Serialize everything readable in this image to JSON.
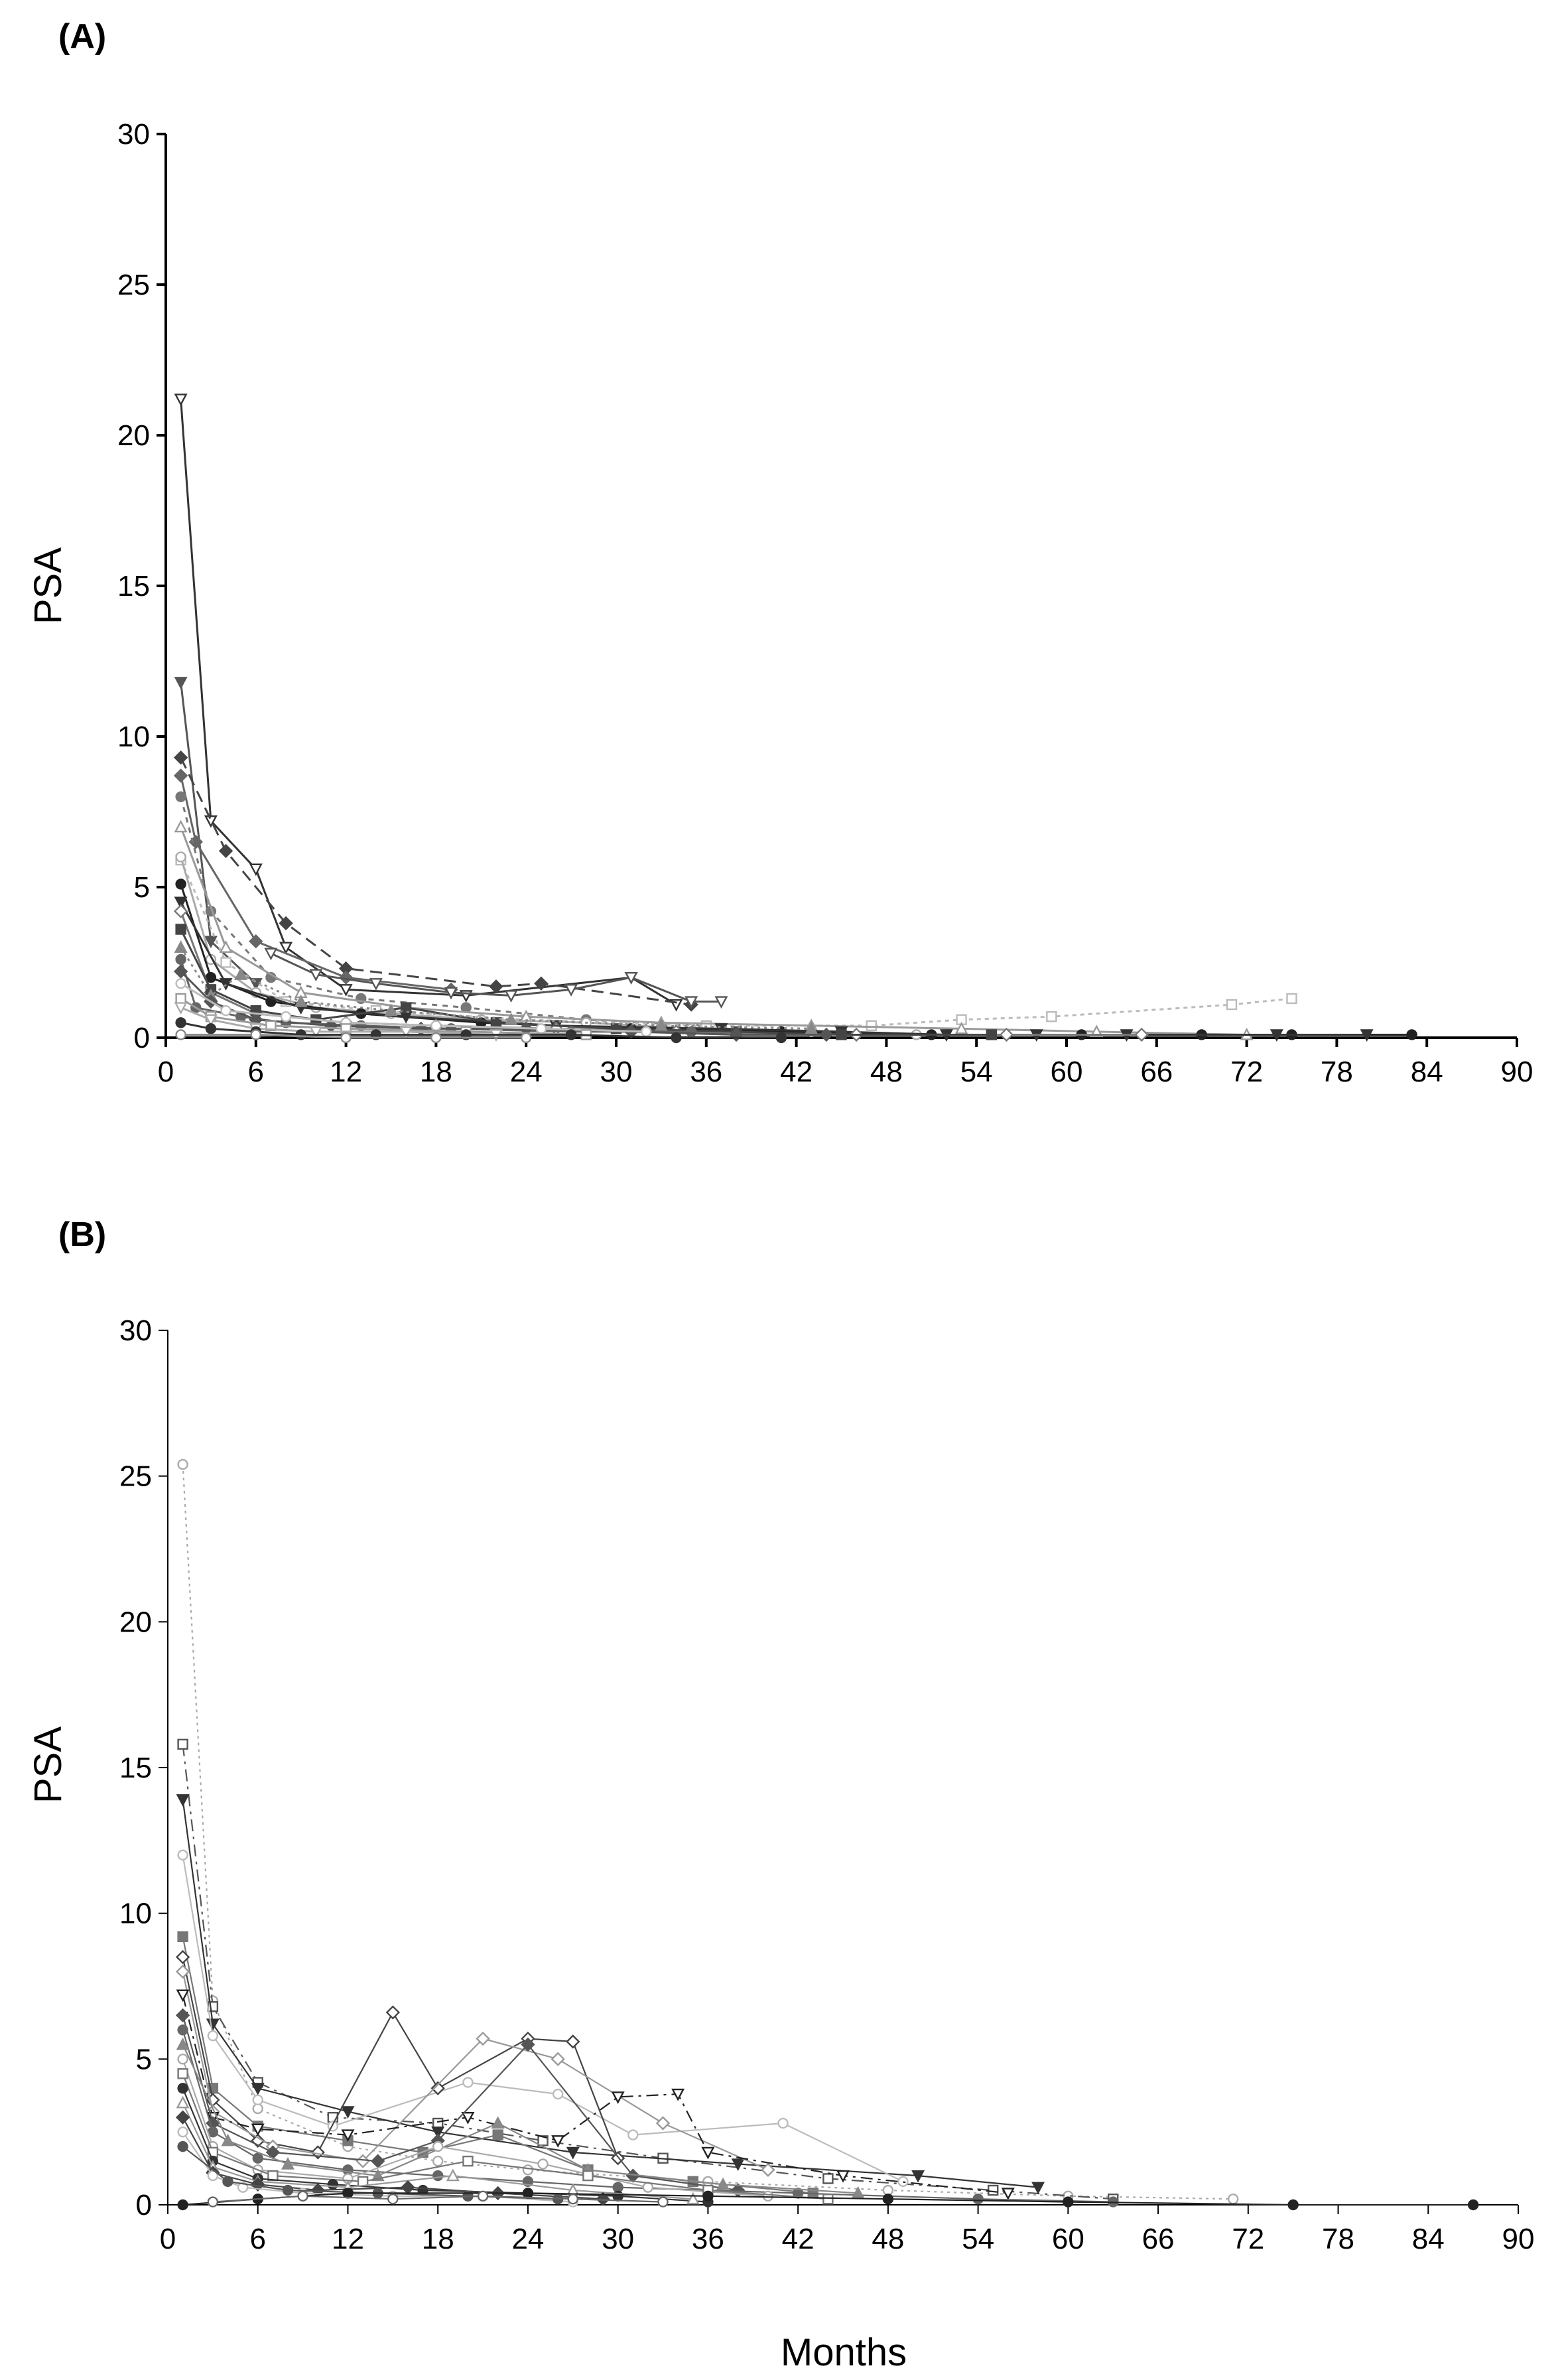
{
  "chart_data": [
    {
      "type": "line",
      "panel_label": "(A)",
      "xlabel": "",
      "ylabel": "PSA",
      "xlim": [
        0,
        90
      ],
      "ylim": [
        0,
        30
      ],
      "xticks": [
        "0",
        "6",
        "12",
        "18",
        "24",
        "30",
        "36",
        "42",
        "48",
        "54",
        "60",
        "66",
        "72",
        "78",
        "84",
        "90"
      ],
      "yticks": [
        "0",
        "5",
        "10",
        "15",
        "20",
        "25",
        "30"
      ],
      "grid": false,
      "series": [
        {
          "marker": "tri-down-open",
          "color": "#333333",
          "dash": "",
          "x": [
            1,
            3,
            6,
            8,
            12,
            20,
            31,
            34
          ],
          "y": [
            21.2,
            7.2,
            5.6,
            3.0,
            1.6,
            1.4,
            2.0,
            1.1
          ]
        },
        {
          "marker": "tri-down-filled",
          "color": "#555555",
          "dash": "",
          "x": [
            1,
            3,
            6
          ],
          "y": [
            11.8,
            3.2,
            1.8
          ]
        },
        {
          "marker": "diamond-filled",
          "color": "#444444",
          "dash": "18,10",
          "x": [
            1,
            4,
            8,
            12,
            22,
            25,
            35
          ],
          "y": [
            9.3,
            6.2,
            3.8,
            2.3,
            1.7,
            1.8,
            1.1
          ]
        },
        {
          "marker": "diamond-filled",
          "color": "#666666",
          "dash": "",
          "x": [
            1,
            2,
            6,
            12,
            19
          ],
          "y": [
            8.7,
            6.5,
            3.2,
            2.0,
            1.6
          ]
        },
        {
          "marker": "circle-filled",
          "color": "#777777",
          "dash": "8,8",
          "x": [
            1,
            3,
            7,
            13,
            20,
            28,
            36
          ],
          "y": [
            8.0,
            4.2,
            2.0,
            1.3,
            1.0,
            0.6,
            0.4
          ]
        },
        {
          "marker": "tri-down-open",
          "color": "#555555",
          "dash": "",
          "x": [
            7,
            10,
            14,
            19,
            23,
            27,
            31,
            35,
            37
          ],
          "y": [
            2.8,
            2.1,
            1.8,
            1.5,
            1.4,
            1.6,
            2.0,
            1.2,
            1.2
          ]
        },
        {
          "marker": "square-open",
          "color": "#bbbbbb",
          "dash": "6,6",
          "x": [
            1,
            4,
            8,
            14,
            24,
            36,
            47,
            53,
            59,
            71,
            75
          ],
          "y": [
            5.9,
            2.5,
            1.2,
            0.9,
            0.6,
            0.4,
            0.4,
            0.6,
            0.7,
            1.1,
            1.3
          ]
        },
        {
          "marker": "tri-up-open",
          "color": "#999999",
          "dash": "",
          "x": [
            1,
            4,
            9,
            16,
            24,
            33,
            43,
            53,
            62,
            72
          ],
          "y": [
            7.0,
            3.0,
            1.5,
            1.0,
            0.7,
            0.5,
            0.4,
            0.3,
            0.2,
            0.1
          ]
        },
        {
          "marker": "circle-open",
          "color": "#aaaaaa",
          "dash": "",
          "x": [
            1,
            3,
            6,
            10,
            15,
            21,
            28,
            35,
            43,
            50
          ],
          "y": [
            6.0,
            2.6,
            1.5,
            1.0,
            0.8,
            0.6,
            0.5,
            0.3,
            0.2,
            0.1
          ]
        },
        {
          "marker": "circle-filled",
          "color": "#222222",
          "dash": "",
          "x": [
            1,
            3,
            7,
            13,
            21,
            31,
            41,
            51,
            61,
            69,
            75,
            83
          ],
          "y": [
            5.1,
            2.0,
            1.2,
            0.8,
            0.5,
            0.3,
            0.2,
            0.1,
            0.1,
            0.1,
            0.1,
            0.1
          ]
        },
        {
          "marker": "tri-down-filled",
          "color": "#333333",
          "dash": "",
          "x": [
            1,
            4,
            9,
            16,
            26,
            37,
            45,
            52,
            58,
            64,
            74,
            80
          ],
          "y": [
            4.5,
            1.8,
            1.0,
            0.7,
            0.4,
            0.3,
            0.2,
            0.1,
            0.1,
            0.1,
            0.1,
            0.1
          ]
        },
        {
          "marker": "diamond-open",
          "color": "#777777",
          "dash": "",
          "x": [
            1,
            3,
            6,
            12,
            18,
            26,
            34,
            46,
            56,
            65
          ],
          "y": [
            4.2,
            1.5,
            0.8,
            0.5,
            0.4,
            0.3,
            0.2,
            0.1,
            0.1,
            0.1
          ]
        },
        {
          "marker": "square-filled",
          "color": "#444444",
          "dash": "",
          "x": [
            1,
            3,
            6,
            10,
            16,
            22,
            30,
            38,
            45,
            55
          ],
          "y": [
            3.6,
            1.6,
            0.9,
            0.6,
            1.0,
            0.5,
            0.3,
            0.2,
            0.1,
            0.1
          ]
        },
        {
          "marker": "tri-up-filled",
          "color": "#888888",
          "dash": "4,6",
          "x": [
            1,
            3,
            5,
            9,
            15,
            23,
            33,
            43
          ],
          "y": [
            3.0,
            1.4,
            2.1,
            1.2,
            0.9,
            0.6,
            0.4,
            0.3
          ]
        },
        {
          "marker": "circle-filled",
          "color": "#666666",
          "dash": "",
          "x": [
            1,
            2,
            5,
            8,
            13,
            19,
            27,
            35
          ],
          "y": [
            2.6,
            1.0,
            0.7,
            0.5,
            0.4,
            0.3,
            0.2,
            0.2
          ]
        },
        {
          "marker": "diamond-filled",
          "color": "#555555",
          "dash": "",
          "x": [
            1,
            3,
            6,
            11,
            17,
            24,
            31,
            38,
            44
          ],
          "y": [
            2.2,
            1.2,
            0.6,
            0.4,
            0.3,
            0.3,
            0.2,
            0.1,
            0.1
          ]
        },
        {
          "marker": "circle-open",
          "color": "#bbbbbb",
          "dash": "",
          "x": [
            1,
            4,
            8,
            12,
            18,
            25,
            32
          ],
          "y": [
            1.8,
            0.9,
            0.7,
            0.5,
            0.4,
            0.3,
            0.2
          ]
        },
        {
          "marker": "square-open",
          "color": "#999999",
          "dash": "",
          "x": [
            1,
            3,
            7,
            12,
            20,
            28
          ],
          "y": [
            1.3,
            0.7,
            0.4,
            0.3,
            0.2,
            0.1
          ]
        },
        {
          "marker": "tri-down-open",
          "color": "#aaaaaa",
          "dash": "",
          "x": [
            1,
            3,
            6,
            10,
            16,
            22
          ],
          "y": [
            1.0,
            0.6,
            0.3,
            0.2,
            0.2,
            0.1
          ]
        },
        {
          "marker": "circle-filled",
          "color": "#333333",
          "dash": "",
          "x": [
            1,
            3,
            6,
            9,
            14,
            20,
            27,
            34,
            41
          ],
          "y": [
            0.5,
            0.3,
            0.2,
            0.1,
            0.1,
            0.1,
            0.1,
            0.0,
            0.0
          ]
        },
        {
          "marker": "circle-open",
          "color": "#888888",
          "dash": "",
          "x": [
            1,
            6,
            12,
            18,
            24
          ],
          "y": [
            0.1,
            0.1,
            0.0,
            0.0,
            0.0
          ]
        }
      ]
    },
    {
      "type": "line",
      "panel_label": "(B)",
      "xlabel": "Months",
      "ylabel": "PSA",
      "xlim": [
        0,
        90
      ],
      "ylim": [
        0,
        30
      ],
      "xticks": [
        "0",
        "6",
        "12",
        "18",
        "24",
        "30",
        "36",
        "42",
        "48",
        "54",
        "60",
        "66",
        "72",
        "78",
        "84",
        "90"
      ],
      "yticks": [
        "0",
        "5",
        "10",
        "15",
        "20",
        "25",
        "30"
      ],
      "grid": false,
      "series": [
        {
          "marker": "circle-open",
          "color": "#aaaaaa",
          "dash": "4,6",
          "x": [
            1,
            3,
            6,
            12,
            18,
            24,
            36,
            48,
            60,
            71
          ],
          "y": [
            25.4,
            7.0,
            3.3,
            2.0,
            1.5,
            1.2,
            0.8,
            0.5,
            0.3,
            0.2
          ]
        },
        {
          "marker": "square-open",
          "color": "#555555",
          "dash": "18,8,4,8",
          "x": [
            1,
            3,
            6,
            11,
            18,
            25,
            33,
            44,
            55,
            63
          ],
          "y": [
            15.8,
            6.8,
            4.2,
            3.0,
            2.8,
            2.2,
            1.6,
            0.9,
            0.5,
            0.2
          ]
        },
        {
          "marker": "tri-down-filled",
          "color": "#333333",
          "dash": "",
          "x": [
            1,
            3,
            6,
            12,
            18,
            27,
            38,
            50,
            58
          ],
          "y": [
            13.9,
            6.2,
            4.0,
            3.2,
            2.5,
            1.8,
            1.4,
            1.0,
            0.6
          ]
        },
        {
          "marker": "circle-open",
          "color": "#bbbbbb",
          "dash": "",
          "x": [
            1,
            3,
            6,
            11,
            20,
            26,
            31,
            41,
            49
          ],
          "y": [
            12.0,
            5.8,
            3.6,
            2.7,
            4.2,
            3.8,
            2.4,
            2.8,
            0.8
          ]
        },
        {
          "marker": "square-filled",
          "color": "#777777",
          "dash": "",
          "x": [
            1,
            3,
            6,
            12,
            17,
            22,
            28,
            35,
            43
          ],
          "y": [
            9.2,
            4.0,
            2.7,
            2.2,
            1.8,
            2.4,
            1.2,
            0.8,
            0.4
          ]
        },
        {
          "marker": "diamond-open",
          "color": "#444444",
          "dash": "",
          "x": [
            1,
            3,
            6,
            10,
            15,
            18,
            24,
            27,
            30
          ],
          "y": [
            8.5,
            3.6,
            2.2,
            1.8,
            6.6,
            4.0,
            5.7,
            5.6,
            1.6
          ]
        },
        {
          "marker": "diamond-open",
          "color": "#999999",
          "dash": "",
          "x": [
            1,
            3,
            7,
            13,
            21,
            26,
            33,
            40
          ],
          "y": [
            8.0,
            3.2,
            2.0,
            1.5,
            5.7,
            5.0,
            2.8,
            1.2
          ]
        },
        {
          "marker": "tri-down-open",
          "color": "#222222",
          "dash": "18,8,4,8",
          "x": [
            1,
            3,
            6,
            12,
            20,
            26,
            30,
            34,
            36,
            45,
            56
          ],
          "y": [
            7.2,
            3.0,
            2.6,
            2.4,
            3.0,
            2.2,
            3.7,
            3.8,
            1.8,
            1.0,
            0.4
          ]
        },
        {
          "marker": "diamond-filled",
          "color": "#555555",
          "dash": "",
          "x": [
            1,
            3,
            7,
            14,
            18,
            24,
            31,
            38
          ],
          "y": [
            6.5,
            2.8,
            1.8,
            1.5,
            2.2,
            5.5,
            1.0,
            0.5
          ]
        },
        {
          "marker": "circle-filled",
          "color": "#666666",
          "dash": "",
          "x": [
            1,
            3,
            6,
            12,
            18,
            24,
            30,
            42,
            54,
            63
          ],
          "y": [
            6.0,
            2.5,
            1.6,
            1.2,
            1.0,
            0.8,
            0.6,
            0.4,
            0.2,
            0.1
          ]
        },
        {
          "marker": "tri-up-filled",
          "color": "#888888",
          "dash": "",
          "x": [
            1,
            4,
            8,
            14,
            22,
            28,
            37,
            46
          ],
          "y": [
            5.5,
            2.2,
            1.4,
            1.0,
            2.8,
            1.2,
            0.7,
            0.4
          ]
        },
        {
          "marker": "circle-open",
          "color": "#aaaaaa",
          "dash": "",
          "x": [
            1,
            3,
            6,
            12,
            18,
            25,
            32,
            40
          ],
          "y": [
            5.0,
            2.0,
            1.2,
            0.9,
            2.0,
            1.4,
            0.6,
            0.3
          ]
        },
        {
          "marker": "square-open",
          "color": "#777777",
          "dash": "",
          "x": [
            1,
            3,
            7,
            13,
            20,
            28,
            36,
            44
          ],
          "y": [
            4.5,
            1.8,
            1.0,
            0.8,
            1.5,
            1.0,
            0.5,
            0.2
          ]
        },
        {
          "marker": "circle-filled",
          "color": "#333333",
          "dash": "",
          "x": [
            1,
            3,
            6,
            11,
            17,
            24,
            30,
            36
          ],
          "y": [
            4.0,
            1.5,
            0.9,
            0.7,
            0.5,
            0.4,
            0.3,
            0.1
          ]
        },
        {
          "marker": "tri-up-open",
          "color": "#999999",
          "dash": "",
          "x": [
            1,
            3,
            6,
            12,
            19,
            27,
            35
          ],
          "y": [
            3.5,
            1.3,
            0.8,
            0.6,
            1.0,
            0.5,
            0.2
          ]
        },
        {
          "marker": "diamond-filled",
          "color": "#444444",
          "dash": "",
          "x": [
            1,
            3,
            6,
            10,
            16,
            22,
            29
          ],
          "y": [
            3.0,
            1.1,
            0.7,
            0.5,
            0.6,
            0.4,
            0.2
          ]
        },
        {
          "marker": "circle-open",
          "color": "#bbbbbb",
          "dash": "",
          "x": [
            1,
            3,
            5,
            9,
            15,
            21,
            27
          ],
          "y": [
            2.5,
            1.0,
            0.6,
            0.4,
            0.3,
            0.3,
            0.1
          ]
        },
        {
          "marker": "circle-filled",
          "color": "#555555",
          "dash": "",
          "x": [
            1,
            4,
            8,
            14,
            20,
            26
          ],
          "y": [
            2.0,
            0.8,
            0.5,
            0.4,
            0.3,
            0.2
          ]
        },
        {
          "marker": "circle-filled",
          "color": "#222222",
          "dash": "",
          "x": [
            1,
            6,
            12,
            24,
            36,
            48,
            60,
            75,
            87
          ],
          "y": [
            0.0,
            0.2,
            0.4,
            0.4,
            0.3,
            0.2,
            0.1,
            0.0,
            0.0
          ]
        },
        {
          "marker": "circle-open",
          "color": "#666666",
          "dash": "",
          "x": [
            3,
            9,
            15,
            21,
            27,
            33
          ],
          "y": [
            0.1,
            0.3,
            0.2,
            0.3,
            0.2,
            0.1
          ]
        }
      ]
    }
  ]
}
